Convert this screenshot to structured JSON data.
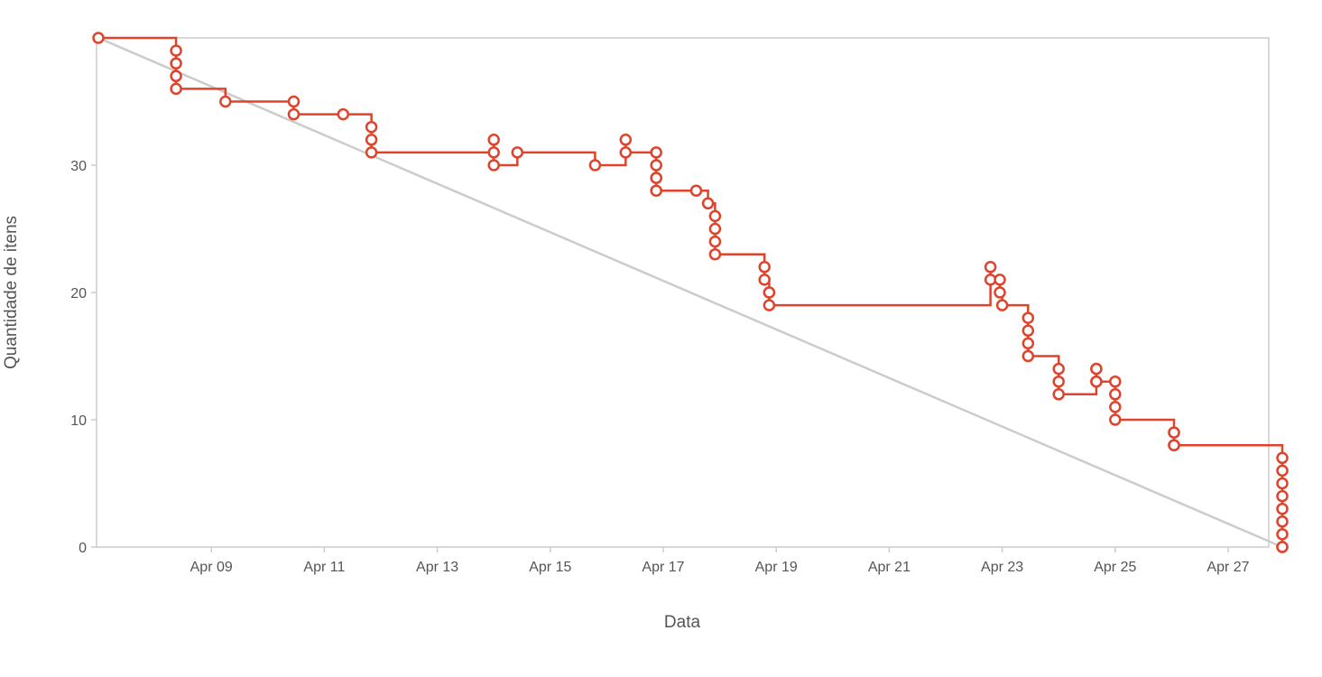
{
  "chart_data": {
    "type": "line",
    "title": "",
    "xlabel": "Data",
    "ylabel": "Quantidade de itens",
    "x_range": [
      "2021-04-07",
      "2021-04-28"
    ],
    "ylim": [
      0,
      40
    ],
    "x_ticks": [
      {
        "date": "2021-04-09",
        "label": "Apr 09"
      },
      {
        "date": "2021-04-11",
        "label": "Apr 11"
      },
      {
        "date": "2021-04-13",
        "label": "Apr 13"
      },
      {
        "date": "2021-04-15",
        "label": "Apr 15"
      },
      {
        "date": "2021-04-17",
        "label": "Apr 17"
      },
      {
        "date": "2021-04-19",
        "label": "Apr 19"
      },
      {
        "date": "2021-04-21",
        "label": "Apr 21"
      },
      {
        "date": "2021-04-23",
        "label": "Apr 23"
      },
      {
        "date": "2021-04-25",
        "label": "Apr 25"
      },
      {
        "date": "2021-04-27",
        "label": "Apr 27"
      }
    ],
    "y_ticks": [
      0,
      10,
      20,
      30
    ],
    "grid": false,
    "legend": "none",
    "series": [
      {
        "type": "line",
        "color": "#cccccc",
        "points": [
          [
            "2021-04-07 00:00",
            40
          ],
          [
            "2021-04-27 23:00",
            0
          ]
        ]
      },
      {
        "type": "step",
        "color": "#e0432c",
        "points": [
          [
            "2021-04-07 00:00",
            40
          ],
          [
            "2021-04-08 09:00",
            39
          ],
          [
            "2021-04-08 09:00",
            38
          ],
          [
            "2021-04-08 09:00",
            37
          ],
          [
            "2021-04-08 09:00",
            36
          ],
          [
            "2021-04-09 06:00",
            35
          ],
          [
            "2021-04-10 11:00",
            35
          ],
          [
            "2021-04-10 11:00",
            34
          ],
          [
            "2021-04-11 08:00",
            34
          ],
          [
            "2021-04-11 20:00",
            33
          ],
          [
            "2021-04-11 20:00",
            32
          ],
          [
            "2021-04-11 20:00",
            31
          ],
          [
            "2021-04-14 00:00",
            32
          ],
          [
            "2021-04-14 00:00",
            31
          ],
          [
            "2021-04-14 00:00",
            30
          ],
          [
            "2021-04-14 10:00",
            31
          ],
          [
            "2021-04-15 19:00",
            30
          ],
          [
            "2021-04-16 08:00",
            32
          ],
          [
            "2021-04-16 08:00",
            31
          ],
          [
            "2021-04-16 21:00",
            31
          ],
          [
            "2021-04-16 21:00",
            30
          ],
          [
            "2021-04-16 21:00",
            29
          ],
          [
            "2021-04-16 21:00",
            29
          ],
          [
            "2021-04-16 21:00",
            28
          ],
          [
            "2021-04-17 14:00",
            28
          ],
          [
            "2021-04-17 19:00",
            27
          ],
          [
            "2021-04-17 22:00",
            26
          ],
          [
            "2021-04-17 22:00",
            25
          ],
          [
            "2021-04-17 22:00",
            24
          ],
          [
            "2021-04-17 22:00",
            23
          ],
          [
            "2021-04-18 19:00",
            22
          ],
          [
            "2021-04-18 19:00",
            21
          ],
          [
            "2021-04-18 21:00",
            20
          ],
          [
            "2021-04-18 21:00",
            20
          ],
          [
            "2021-04-18 21:00",
            19
          ],
          [
            "2021-04-22 19:00",
            22
          ],
          [
            "2021-04-22 19:00",
            21
          ],
          [
            "2021-04-22 23:00",
            21
          ],
          [
            "2021-04-22 23:00",
            20
          ],
          [
            "2021-04-23 00:00",
            19
          ],
          [
            "2021-04-23 11:00",
            18
          ],
          [
            "2021-04-23 11:00",
            17
          ],
          [
            "2021-04-23 11:00",
            16
          ],
          [
            "2021-04-23 11:00",
            15
          ],
          [
            "2021-04-24 00:00",
            14
          ],
          [
            "2021-04-24 00:00",
            13
          ],
          [
            "2021-04-24 00:00",
            12
          ],
          [
            "2021-04-24 16:00",
            14
          ],
          [
            "2021-04-24 16:00",
            14
          ],
          [
            "2021-04-24 16:00",
            13
          ],
          [
            "2021-04-24 16:00",
            13
          ],
          [
            "2021-04-25 00:00",
            13
          ],
          [
            "2021-04-25 00:00",
            12
          ],
          [
            "2021-04-25 00:00",
            11
          ],
          [
            "2021-04-25 00:00",
            10
          ],
          [
            "2021-04-26 01:00",
            9
          ],
          [
            "2021-04-26 01:00",
            9
          ],
          [
            "2021-04-26 01:00",
            8
          ],
          [
            "2021-04-26 01:00",
            8
          ],
          [
            "2021-04-27 23:00",
            7
          ],
          [
            "2021-04-27 23:00",
            6
          ],
          [
            "2021-04-27 23:00",
            5
          ],
          [
            "2021-04-27 23:00",
            4
          ],
          [
            "2021-04-27 23:00",
            3
          ],
          [
            "2021-04-27 23:00",
            2
          ],
          [
            "2021-04-27 23:00",
            1
          ],
          [
            "2021-04-27 23:00",
            0
          ],
          [
            "2021-04-27 23:00",
            0
          ]
        ]
      }
    ]
  }
}
